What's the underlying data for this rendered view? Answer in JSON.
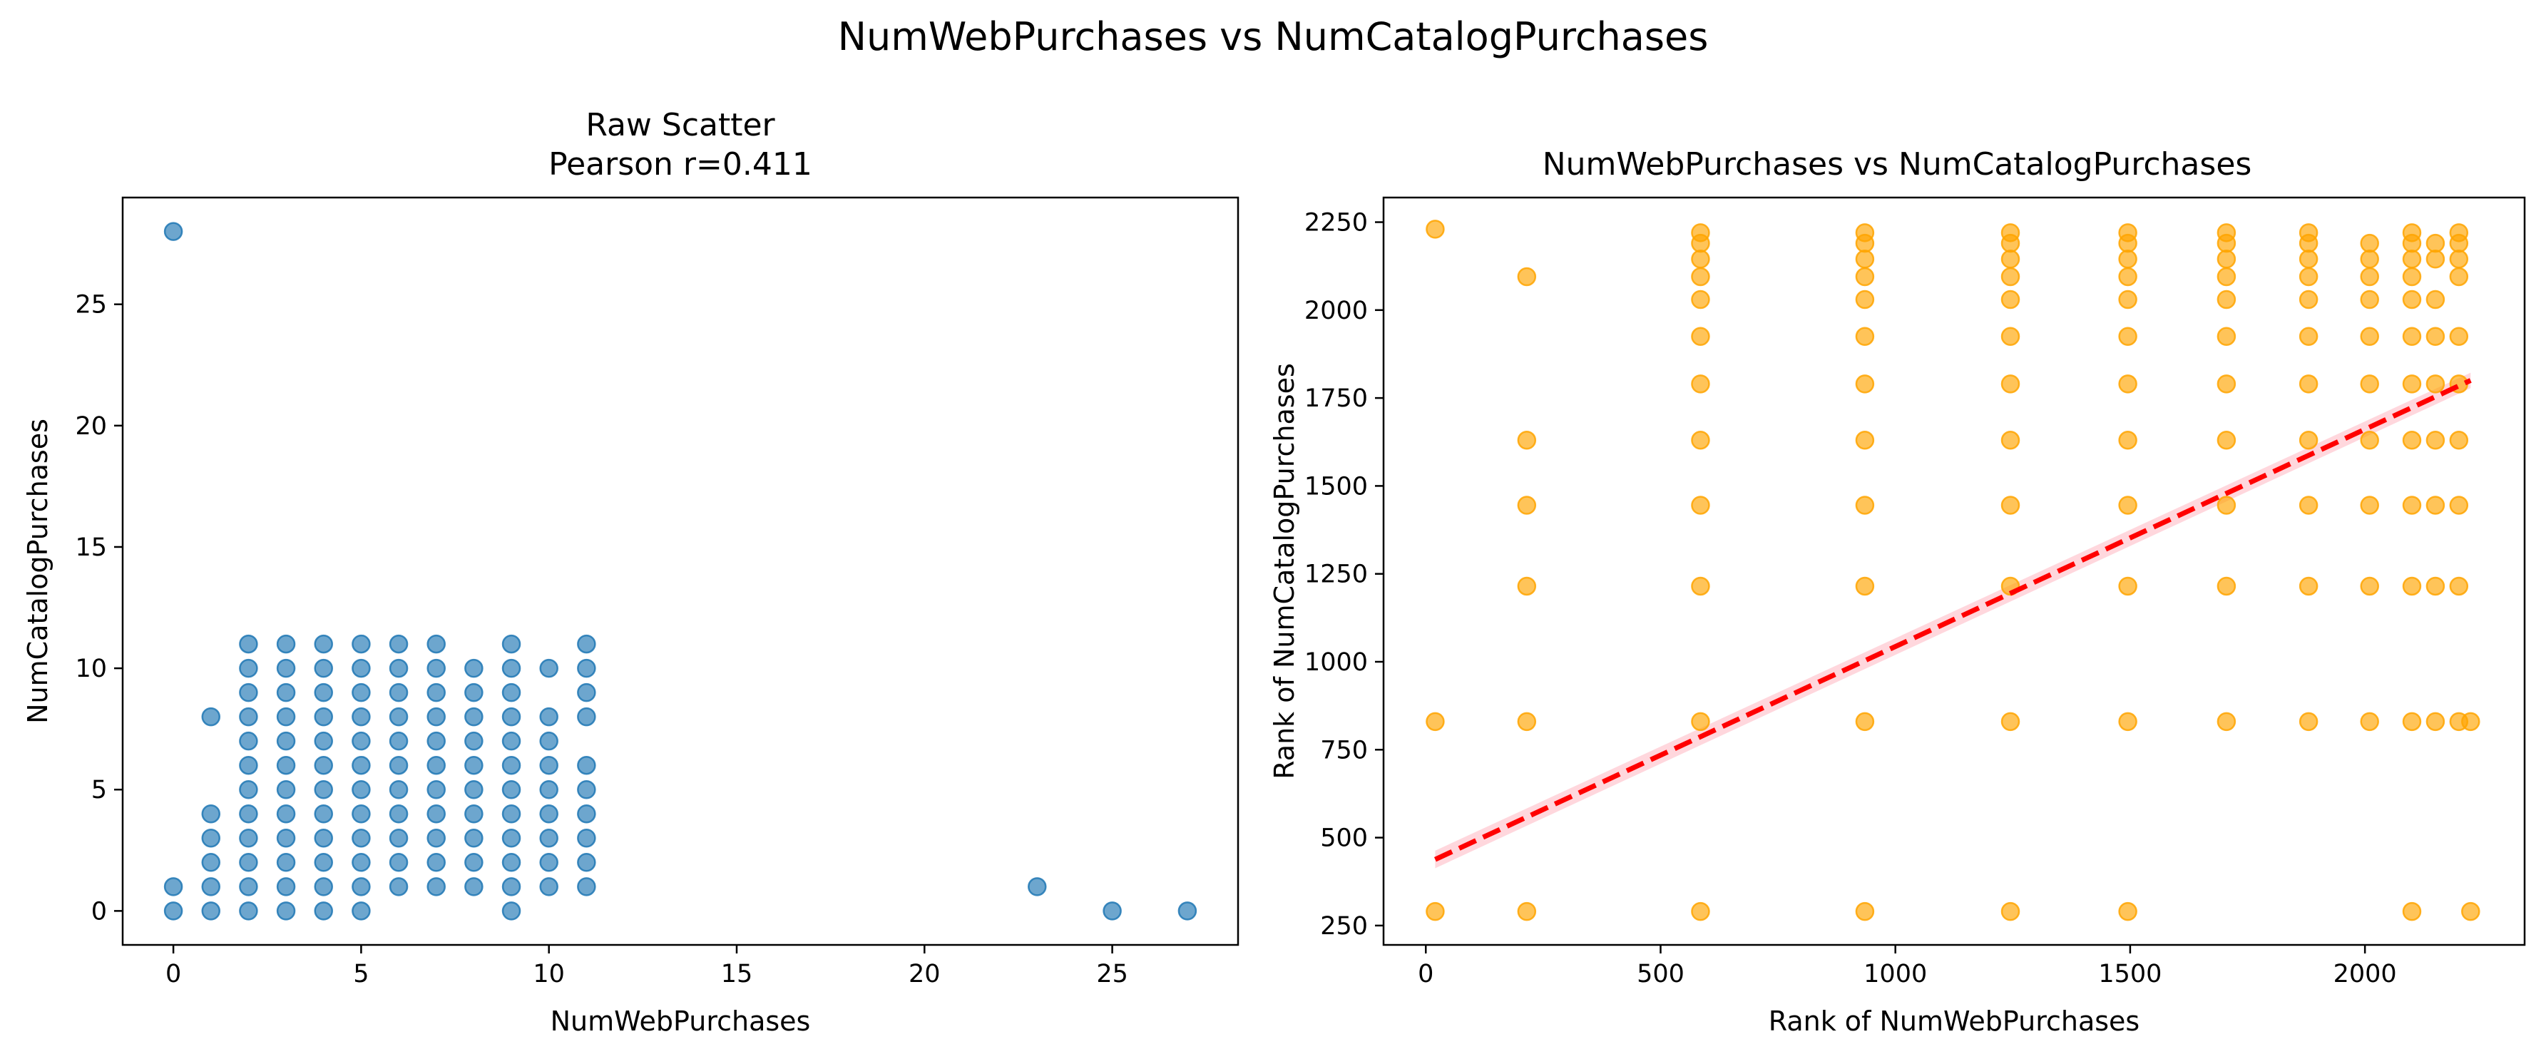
{
  "figure": {
    "suptitle": "NumWebPurchases vs NumCatalogPurchases",
    "colors": {
      "left_points": "#1f77b4",
      "right_points": "#ffa500",
      "fit_line": "#ff0000",
      "fit_band": "#ffb6c1"
    }
  },
  "chart_data": [
    {
      "type": "scatter",
      "title": "Raw Scatter",
      "subtitle": "Pearson r=0.411",
      "xlabel": "NumWebPurchases",
      "ylabel": "NumCatalogPurchases",
      "xlim": [
        -1.35,
        28.35
      ],
      "ylim": [
        -1.4,
        29.4
      ],
      "xticks": [
        0,
        5,
        10,
        15,
        20,
        25
      ],
      "yticks": [
        0,
        5,
        10,
        15,
        20,
        25
      ],
      "grid": false,
      "point_color": "#1f77b4",
      "columns": [
        {
          "x": 0,
          "y": [
            0,
            1,
            28
          ]
        },
        {
          "x": 1,
          "y": [
            0,
            1,
            2,
            3,
            4,
            8
          ]
        },
        {
          "x": 2,
          "y": [
            0,
            1,
            2,
            3,
            4,
            5,
            6,
            7,
            8,
            9,
            10,
            11
          ]
        },
        {
          "x": 3,
          "y": [
            0,
            1,
            2,
            3,
            4,
            5,
            6,
            7,
            8,
            9,
            10,
            11
          ]
        },
        {
          "x": 4,
          "y": [
            0,
            1,
            2,
            3,
            4,
            5,
            6,
            7,
            8,
            9,
            10,
            11
          ]
        },
        {
          "x": 5,
          "y": [
            0,
            1,
            2,
            3,
            4,
            5,
            6,
            7,
            8,
            9,
            10,
            11
          ]
        },
        {
          "x": 6,
          "y": [
            1,
            2,
            3,
            4,
            5,
            6,
            7,
            8,
            9,
            10,
            11
          ]
        },
        {
          "x": 7,
          "y": [
            1,
            2,
            3,
            4,
            5,
            6,
            7,
            8,
            9,
            10,
            11
          ]
        },
        {
          "x": 8,
          "y": [
            1,
            2,
            3,
            4,
            5,
            6,
            7,
            8,
            9,
            10
          ]
        },
        {
          "x": 9,
          "y": [
            0,
            1,
            2,
            3,
            4,
            5,
            6,
            7,
            8,
            9,
            10,
            11
          ]
        },
        {
          "x": 10,
          "y": [
            1,
            2,
            3,
            4,
            5,
            6,
            7,
            8,
            10
          ]
        },
        {
          "x": 11,
          "y": [
            1,
            2,
            3,
            4,
            5,
            6,
            8,
            9,
            10,
            11
          ]
        },
        {
          "x": 23,
          "y": [
            1
          ]
        },
        {
          "x": 25,
          "y": [
            0
          ]
        },
        {
          "x": 27,
          "y": [
            0
          ]
        }
      ]
    },
    {
      "type": "scatter",
      "title": "NumWebPurchases vs NumCatalogPurchases",
      "xlabel": "Rank of NumWebPurchases",
      "ylabel": "Rank of NumCatalogPurchases",
      "xlim": [
        -90,
        2340
      ],
      "ylim": [
        195,
        2320
      ],
      "xticks": [
        0,
        500,
        1000,
        1500,
        2000
      ],
      "yticks": [
        250,
        500,
        750,
        1000,
        1250,
        1500,
        1750,
        2000,
        2250
      ],
      "grid": false,
      "point_color": "#ffa500",
      "columns": [
        {
          "x": 20,
          "y": [
            290,
            830,
            2230
          ]
        },
        {
          "x": 215,
          "y": [
            290,
            830,
            1215,
            1445,
            1630,
            2095
          ]
        },
        {
          "x": 585,
          "y": [
            290,
            830,
            1215,
            1445,
            1630,
            1790,
            1925,
            2030,
            2095,
            2145,
            2190,
            2220
          ]
        },
        {
          "x": 935,
          "y": [
            290,
            830,
            1215,
            1445,
            1630,
            1790,
            1925,
            2030,
            2095,
            2145,
            2190,
            2220
          ]
        },
        {
          "x": 1245,
          "y": [
            290,
            830,
            1215,
            1445,
            1630,
            1790,
            1925,
            2030,
            2095,
            2145,
            2190,
            2220
          ]
        },
        {
          "x": 1495,
          "y": [
            290,
            830,
            1215,
            1445,
            1630,
            1790,
            1925,
            2030,
            2095,
            2145,
            2190,
            2220
          ]
        },
        {
          "x": 1705,
          "y": [
            830,
            1215,
            1445,
            1630,
            1790,
            1925,
            2030,
            2095,
            2145,
            2190,
            2220
          ]
        },
        {
          "x": 1880,
          "y": [
            830,
            1215,
            1445,
            1630,
            1790,
            1925,
            2030,
            2095,
            2145,
            2190,
            2220
          ]
        },
        {
          "x": 2010,
          "y": [
            830,
            1215,
            1445,
            1630,
            1790,
            1925,
            2030,
            2095,
            2145,
            2190
          ]
        },
        {
          "x": 2100,
          "y": [
            290,
            830,
            1215,
            1445,
            1630,
            1790,
            1925,
            2030,
            2095,
            2145,
            2190,
            2220
          ]
        },
        {
          "x": 2150,
          "y": [
            830,
            1215,
            1445,
            1630,
            1790,
            1925,
            2030,
            2145,
            2190
          ]
        },
        {
          "x": 2200,
          "y": [
            830,
            1215,
            1445,
            1630,
            1790,
            1925,
            2095,
            2145,
            2190,
            2220
          ]
        },
        {
          "x": 2225,
          "y": [
            290,
            830
          ]
        }
      ],
      "regression": {
        "x": [
          20,
          2225
        ],
        "y": [
          438,
          1800
        ],
        "ci_halfwidth": [
          25,
          22
        ],
        "line_color": "#ff0000",
        "line_style": "dashed"
      }
    }
  ]
}
